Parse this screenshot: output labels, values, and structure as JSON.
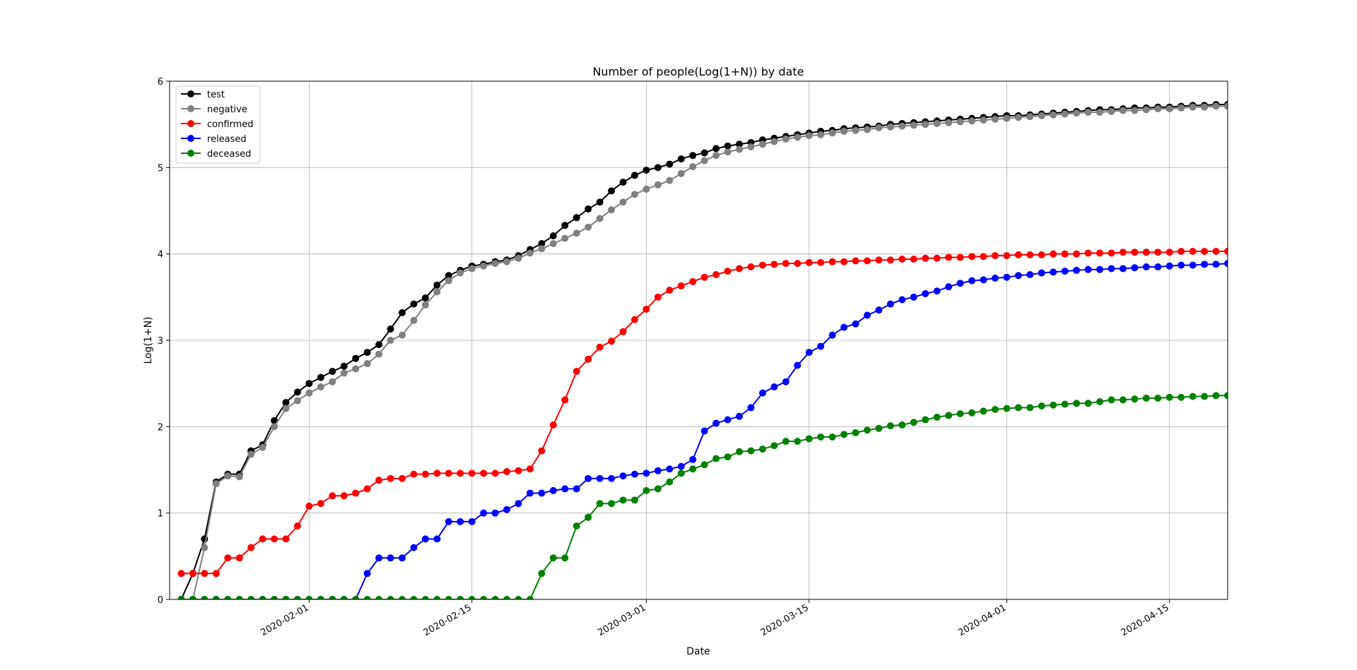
{
  "chart_data": {
    "type": "line",
    "title": "Number of people(Log(1+N)) by date",
    "xlabel": "Date",
    "ylabel": "Log(1+N)",
    "start_date": "2020-01-20",
    "end_date": "2020-04-20",
    "ylim": [
      0,
      6
    ],
    "yticks": [
      0,
      1,
      2,
      3,
      4,
      5,
      6
    ],
    "xticks": [
      "2020-02-01",
      "2020-02-15",
      "2020-03-01",
      "2020-03-15",
      "2020-04-01",
      "2020-04-15"
    ],
    "grid": true,
    "legend_position": "upper-left",
    "series": [
      {
        "name": "test",
        "color": "#000000",
        "values": [
          0.0,
          0.3,
          0.7,
          1.36,
          1.45,
          1.45,
          1.72,
          1.79,
          2.07,
          2.28,
          2.4,
          2.5,
          2.57,
          2.64,
          2.7,
          2.79,
          2.86,
          2.95,
          3.13,
          3.32,
          3.42,
          3.49,
          3.64,
          3.75,
          3.81,
          3.86,
          3.88,
          3.91,
          3.93,
          3.98,
          4.05,
          4.12,
          4.21,
          4.33,
          4.42,
          4.52,
          4.6,
          4.73,
          4.83,
          4.91,
          4.97,
          5.0,
          5.04,
          5.1,
          5.14,
          5.17,
          5.22,
          5.25,
          5.27,
          5.29,
          5.32,
          5.34,
          5.36,
          5.38,
          5.4,
          5.42,
          5.43,
          5.45,
          5.46,
          5.47,
          5.48,
          5.5,
          5.51,
          5.52,
          5.53,
          5.54,
          5.55,
          5.56,
          5.57,
          5.58,
          5.59,
          5.6,
          5.6,
          5.61,
          5.62,
          5.63,
          5.64,
          5.65,
          5.66,
          5.67,
          5.67,
          5.68,
          5.69,
          5.69,
          5.7,
          5.7,
          5.71,
          5.72,
          5.72,
          5.73,
          5.73,
          5.74,
          5.74,
          5.75,
          5.75,
          5.75
        ]
      },
      {
        "name": "negative",
        "color": "#808080",
        "values": [
          0.0,
          0.0,
          0.6,
          1.34,
          1.43,
          1.42,
          1.68,
          1.76,
          2.0,
          2.21,
          2.3,
          2.39,
          2.46,
          2.52,
          2.62,
          2.67,
          2.73,
          2.84,
          3.0,
          3.06,
          3.23,
          3.41,
          3.56,
          3.69,
          3.78,
          3.83,
          3.86,
          3.89,
          3.91,
          3.95,
          4.01,
          4.06,
          4.12,
          4.18,
          4.24,
          4.31,
          4.41,
          4.51,
          4.6,
          4.69,
          4.75,
          4.8,
          4.85,
          4.93,
          5.01,
          5.08,
          5.14,
          5.18,
          5.21,
          5.24,
          5.27,
          5.3,
          5.33,
          5.35,
          5.37,
          5.38,
          5.4,
          5.42,
          5.43,
          5.44,
          5.46,
          5.47,
          5.48,
          5.49,
          5.5,
          5.51,
          5.52,
          5.53,
          5.54,
          5.55,
          5.56,
          5.57,
          5.58,
          5.59,
          5.6,
          5.61,
          5.62,
          5.63,
          5.64,
          5.64,
          5.65,
          5.66,
          5.66,
          5.67,
          5.68,
          5.68,
          5.69,
          5.7,
          5.7,
          5.71,
          5.71,
          5.72,
          5.72,
          5.73,
          5.73,
          5.73
        ]
      },
      {
        "name": "confirmed",
        "color": "#ff0000",
        "values": [
          0.3,
          0.3,
          0.3,
          0.3,
          0.48,
          0.48,
          0.6,
          0.7,
          0.7,
          0.7,
          0.85,
          1.08,
          1.11,
          1.2,
          1.2,
          1.23,
          1.28,
          1.38,
          1.4,
          1.4,
          1.45,
          1.45,
          1.46,
          1.46,
          1.46,
          1.46,
          1.46,
          1.46,
          1.48,
          1.49,
          1.51,
          1.72,
          2.02,
          2.31,
          2.64,
          2.78,
          2.92,
          2.99,
          3.1,
          3.24,
          3.36,
          3.5,
          3.58,
          3.63,
          3.68,
          3.73,
          3.76,
          3.8,
          3.83,
          3.85,
          3.87,
          3.88,
          3.89,
          3.89,
          3.9,
          3.9,
          3.91,
          3.91,
          3.92,
          3.92,
          3.93,
          3.93,
          3.94,
          3.94,
          3.95,
          3.95,
          3.96,
          3.96,
          3.97,
          3.97,
          3.98,
          3.98,
          3.99,
          3.99,
          3.99,
          4.0,
          4.0,
          4.0,
          4.01,
          4.01,
          4.01,
          4.02,
          4.02,
          4.02,
          4.02,
          4.02,
          4.03,
          4.03,
          4.03,
          4.03,
          4.03,
          4.03,
          4.03,
          4.03,
          4.03,
          4.03
        ]
      },
      {
        "name": "released",
        "color": "#0000ff",
        "values": [
          0.0,
          0.0,
          0.0,
          0.0,
          0.0,
          0.0,
          0.0,
          0.0,
          0.0,
          0.0,
          0.0,
          0.0,
          0.0,
          0.0,
          0.0,
          0.0,
          0.3,
          0.48,
          0.48,
          0.48,
          0.6,
          0.7,
          0.7,
          0.9,
          0.9,
          0.9,
          1.0,
          1.0,
          1.04,
          1.11,
          1.23,
          1.23,
          1.26,
          1.28,
          1.28,
          1.4,
          1.4,
          1.4,
          1.43,
          1.45,
          1.46,
          1.49,
          1.51,
          1.54,
          1.62,
          1.95,
          2.04,
          2.08,
          2.12,
          2.22,
          2.39,
          2.46,
          2.52,
          2.71,
          2.86,
          2.93,
          3.06,
          3.15,
          3.19,
          3.29,
          3.35,
          3.42,
          3.47,
          3.5,
          3.54,
          3.57,
          3.62,
          3.66,
          3.69,
          3.7,
          3.72,
          3.73,
          3.75,
          3.76,
          3.78,
          3.79,
          3.8,
          3.81,
          3.82,
          3.82,
          3.83,
          3.83,
          3.84,
          3.85,
          3.85,
          3.86,
          3.87,
          3.87,
          3.88,
          3.88,
          3.89,
          3.89,
          3.9,
          3.9,
          3.91,
          3.91
        ]
      },
      {
        "name": "deceased",
        "color": "#008000",
        "values": [
          0.0,
          0.0,
          0.0,
          0.0,
          0.0,
          0.0,
          0.0,
          0.0,
          0.0,
          0.0,
          0.0,
          0.0,
          0.0,
          0.0,
          0.0,
          0.0,
          0.0,
          0.0,
          0.0,
          0.0,
          0.0,
          0.0,
          0.0,
          0.0,
          0.0,
          0.0,
          0.0,
          0.0,
          0.0,
          0.0,
          0.0,
          0.3,
          0.48,
          0.48,
          0.85,
          0.95,
          1.11,
          1.11,
          1.15,
          1.15,
          1.26,
          1.28,
          1.36,
          1.46,
          1.51,
          1.56,
          1.63,
          1.65,
          1.71,
          1.72,
          1.74,
          1.78,
          1.83,
          1.83,
          1.86,
          1.88,
          1.88,
          1.91,
          1.93,
          1.96,
          1.98,
          2.01,
          2.02,
          2.05,
          2.08,
          2.11,
          2.13,
          2.15,
          2.16,
          2.18,
          2.2,
          2.21,
          2.22,
          2.22,
          2.24,
          2.25,
          2.26,
          2.27,
          2.27,
          2.29,
          2.31,
          2.31,
          2.32,
          2.33,
          2.33,
          2.34,
          2.34,
          2.35,
          2.35,
          2.36,
          2.36,
          2.37,
          2.37,
          2.37,
          2.37,
          2.37
        ]
      }
    ]
  }
}
